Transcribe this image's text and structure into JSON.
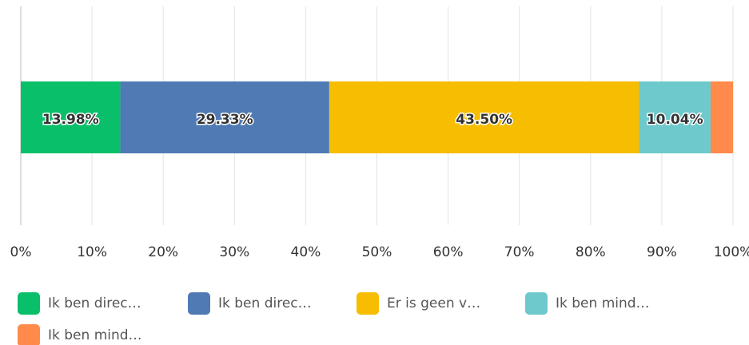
{
  "chart_data": {
    "type": "stacked_bar_horizontal",
    "categories": [
      null
    ],
    "series": [
      {
        "name": "Ik ben direc…",
        "color": "#0abf6a",
        "values": [
          13.98
        ],
        "value_labels": [
          "13.98%"
        ]
      },
      {
        "name": "Ik ben direc…",
        "color": "#4f7ab4",
        "values": [
          29.33
        ],
        "value_labels": [
          "29.33%"
        ]
      },
      {
        "name": "Er is geen v…",
        "color": "#f7bd00",
        "values": [
          43.5
        ],
        "value_labels": [
          "43.50%"
        ]
      },
      {
        "name": "Ik ben mind…",
        "color": "#6dc9cc",
        "values": [
          10.04
        ],
        "value_labels": [
          "10.04%"
        ]
      },
      {
        "name": "Ik ben mind…",
        "color": "#ff8a4c",
        "values": [
          3.15
        ]
      }
    ],
    "xlim": [
      0,
      100
    ],
    "xticks": [
      {
        "value": 0,
        "label": "0%"
      },
      {
        "value": 10,
        "label": "10%"
      },
      {
        "value": 20,
        "label": "20%"
      },
      {
        "value": 30,
        "label": "30%"
      },
      {
        "value": 40,
        "label": "40%"
      },
      {
        "value": 50,
        "label": "50%"
      },
      {
        "value": 60,
        "label": "60%"
      },
      {
        "value": 70,
        "label": "70%"
      },
      {
        "value": 80,
        "label": "80%"
      },
      {
        "value": 90,
        "label": "90%"
      },
      {
        "value": 100,
        "label": "100%"
      }
    ],
    "grid": true,
    "legend": "bottom"
  }
}
